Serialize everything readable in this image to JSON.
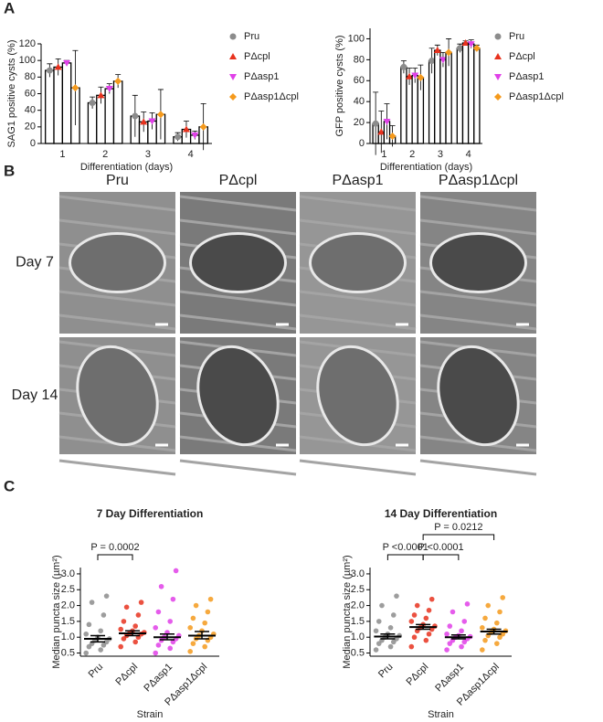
{
  "panel_labels": [
    "A",
    "B",
    "C"
  ],
  "images": {
    "columns": [
      "Pru",
      "PΔcpl",
      "PΔasp1",
      "PΔasp1Δcpl"
    ],
    "rows": [
      "Day 7",
      "Day 14"
    ]
  },
  "chart_data": [
    {
      "type": "bar",
      "ylabel": "SAG1 positive cysts (%)",
      "xlabel": "Differentiation (days)",
      "categories": [
        "1",
        "2",
        "3",
        "4"
      ],
      "ylim": [
        0,
        120
      ],
      "yticks": [
        0,
        20,
        40,
        60,
        80,
        100,
        120
      ],
      "series": [
        {
          "name": "Pru",
          "color": "#8c8c8c",
          "values": [
            88,
            49,
            33,
            8
          ],
          "errors": [
            8,
            7,
            25,
            5
          ]
        },
        {
          "name": "PΔcpl",
          "color": "#e8321e",
          "values": [
            92,
            58,
            26,
            17
          ],
          "errors": [
            10,
            10,
            12,
            10
          ]
        },
        {
          "name": "PΔasp1",
          "color": "#e040e8",
          "values": [
            97,
            66,
            27,
            10
          ],
          "errors": [
            3,
            6,
            10,
            5
          ]
        },
        {
          "name": "PΔasp1Δcpl",
          "color": "#f59a1c",
          "values": [
            67,
            75,
            35,
            20
          ],
          "errors": [
            45,
            8,
            30,
            28
          ]
        }
      ]
    },
    {
      "type": "bar",
      "ylabel": "GFP positive cysts (%)",
      "xlabel": "Differentiation (days)",
      "categories": [
        "1",
        "2",
        "3",
        "4"
      ],
      "ylim": [
        0,
        110
      ],
      "yticks": [
        0,
        20,
        40,
        60,
        80,
        100
      ],
      "series": [
        {
          "name": "Pru",
          "color": "#8c8c8c",
          "values": [
            19,
            73,
            79,
            91
          ],
          "errors": [
            30,
            6,
            12,
            4
          ]
        },
        {
          "name": "PΔcpl",
          "color": "#e8321e",
          "values": [
            11,
            64,
            89,
            96
          ],
          "errors": [
            20,
            8,
            5,
            2
          ]
        },
        {
          "name": "PΔasp1",
          "color": "#e040e8",
          "values": [
            21,
            65,
            80,
            95
          ],
          "errors": [
            17,
            7,
            7,
            4
          ]
        },
        {
          "name": "PΔasp1Δcpl",
          "color": "#f59a1c",
          "values": [
            7,
            63,
            87,
            91
          ],
          "errors": [
            10,
            12,
            13,
            3
          ]
        }
      ]
    },
    {
      "type": "strip",
      "title": "7 Day Differentiation",
      "ylabel": "Median puncta size (µm²)",
      "xlabel": "Strain",
      "categories": [
        "Pru",
        "PΔcpl",
        "PΔasp1",
        "PΔasp1Δcpl"
      ],
      "colors": [
        "#8c8c8c",
        "#e8321e",
        "#e040e8",
        "#f59a1c"
      ],
      "ylim": [
        0.4,
        3.2
      ],
      "yticks": [
        {
          "value": 0.5,
          "label": "0.5"
        },
        {
          "value": 1,
          "label": "1.0"
        },
        {
          "value": 1.5,
          "label": "1.5"
        },
        {
          "value": 2,
          "label": "2.0"
        },
        {
          "value": 2.5,
          "label": "2.5"
        },
        {
          "value": 3,
          "label": "3.0"
        }
      ],
      "points": [
        [
          0.5,
          0.6,
          0.7,
          0.75,
          0.8,
          0.85,
          0.9,
          0.95,
          1.0,
          1.1,
          1.2,
          1.4,
          1.7,
          2.1,
          2.3
        ],
        [
          0.7,
          0.85,
          0.95,
          1.0,
          1.05,
          1.1,
          1.12,
          1.15,
          1.2,
          1.25,
          1.35,
          1.5,
          1.7,
          1.95,
          2.1
        ],
        [
          0.5,
          0.65,
          0.75,
          0.85,
          0.9,
          0.95,
          1.0,
          1.05,
          1.15,
          1.3,
          1.5,
          1.8,
          2.2,
          2.6,
          3.1
        ],
        [
          0.55,
          0.7,
          0.8,
          0.9,
          0.95,
          1.0,
          1.05,
          1.1,
          1.2,
          1.3,
          1.45,
          1.6,
          1.8,
          2.0,
          2.2
        ]
      ],
      "medians": [
        0.95,
        1.12,
        1.0,
        1.05
      ],
      "ci_low": [
        0.85,
        1.05,
        0.92,
        0.95
      ],
      "ci_high": [
        1.05,
        1.2,
        1.1,
        1.18
      ],
      "comparisons": [
        {
          "pair": [
            "Pru",
            "PΔcpl"
          ],
          "label": "P = 0.0002"
        }
      ]
    },
    {
      "type": "strip",
      "title": "14 Day Differentiation",
      "ylabel": "Median puncta size (µm²)",
      "xlabel": "Strain",
      "categories": [
        "Pru",
        "PΔcpl",
        "PΔasp1",
        "PΔasp1Δcpl"
      ],
      "colors": [
        "#8c8c8c",
        "#e8321e",
        "#e040e8",
        "#f59a1c"
      ],
      "ylim": [
        0.4,
        3.2
      ],
      "yticks": [
        {
          "value": 0.5,
          "label": "0.5"
        },
        {
          "value": 1,
          "label": "1.0"
        },
        {
          "value": 1.5,
          "label": "1.5"
        },
        {
          "value": 2,
          "label": "2.0"
        },
        {
          "value": 2.5,
          "label": "2.5"
        },
        {
          "value": 3,
          "label": "3.0"
        }
      ],
      "points": [
        [
          0.6,
          0.7,
          0.8,
          0.85,
          0.9,
          0.95,
          1.0,
          1.05,
          1.1,
          1.2,
          1.3,
          1.5,
          1.7,
          2.0,
          2.3
        ],
        [
          0.7,
          0.9,
          1.0,
          1.1,
          1.2,
          1.25,
          1.3,
          1.35,
          1.4,
          1.5,
          1.6,
          1.7,
          1.85,
          2.0,
          2.2
        ],
        [
          0.6,
          0.7,
          0.8,
          0.85,
          0.9,
          0.95,
          1.0,
          1.02,
          1.05,
          1.1,
          1.2,
          1.35,
          1.5,
          1.8,
          2.05
        ],
        [
          0.6,
          0.8,
          0.9,
          1.0,
          1.05,
          1.1,
          1.15,
          1.2,
          1.25,
          1.3,
          1.45,
          1.6,
          1.8,
          2.0,
          2.25
        ]
      ],
      "medians": [
        1.02,
        1.32,
        1.0,
        1.18
      ],
      "ci_low": [
        0.95,
        1.25,
        0.95,
        1.1
      ],
      "ci_high": [
        1.1,
        1.4,
        1.07,
        1.25
      ],
      "comparisons": [
        {
          "pair": [
            "Pru",
            "PΔcpl"
          ],
          "label": "P <0.0001"
        },
        {
          "pair": [
            "PΔcpl",
            "PΔasp1"
          ],
          "label": "P <0.0001"
        },
        {
          "pair": [
            "PΔcpl",
            "PΔasp1Δcpl"
          ],
          "label": "P = 0.0212"
        }
      ]
    }
  ]
}
